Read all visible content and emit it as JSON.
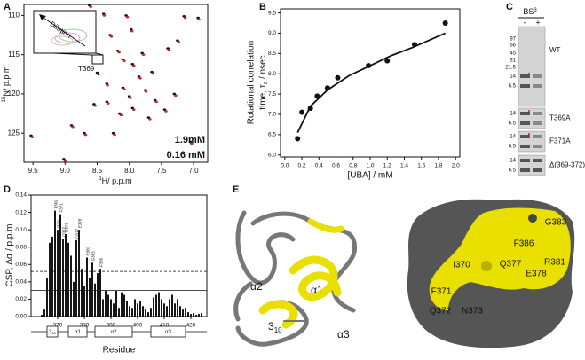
{
  "chart_data": [
    {
      "type": "scatter",
      "panel": "A",
      "xlabel": [
        "1",
        "H/ p.p.m"
      ],
      "ylabel": [
        "15",
        "N/ p.p.m"
      ],
      "xlim": [
        9.64,
        6.78
      ],
      "ylim": [
        128.7,
        108.6
      ],
      "xticks": [
        9.5,
        {
          "value": 9,
          "label": "9.0"
        },
        8.5,
        {
          "value": 8,
          "label": "8.0"
        },
        7.5,
        {
          "value": 7,
          "label": "7.0"
        }
      ],
      "yticks": [
        110,
        115,
        120,
        125
      ],
      "annotations": [
        "Dilution",
        "T369"
      ],
      "series": [
        {
          "name": "1.9mM",
          "color": "#111111",
          "x": [
            9.53,
            9.02,
            8.62,
            8.4,
            8.05,
            7.15,
            6.93,
            7.97,
            8.3,
            8.18,
            8.1,
            7.95,
            8.35,
            8.5,
            7.65,
            7.85,
            8.1,
            7.75,
            8.0,
            8.35,
            7.6,
            7.95,
            8.15,
            7.7,
            7.45,
            7.3,
            7.25,
            8.9,
            8.25,
            7.05,
            8.7,
            7.8,
            7.4,
            8.55
          ],
          "y": [
            125.3,
            128.3,
            108.7,
            109.8,
            110.0,
            110.1,
            110.3,
            111.8,
            112.5,
            114.5,
            115.6,
            116.2,
            118.7,
            117.3,
            117.2,
            117.8,
            119.2,
            119.5,
            120.3,
            121.0,
            120.8,
            121.8,
            122.5,
            123.0,
            122.0,
            120.0,
            113.2,
            124.0,
            125.0,
            126.1,
            125.0,
            114.8,
            114.2,
            121.3
          ]
        },
        {
          "name": "0.16 mM",
          "color": "#d42020",
          "x": [
            9.51,
            9.0,
            8.6,
            8.39,
            8.03,
            7.13,
            6.92,
            7.96,
            8.28,
            8.16,
            8.08,
            7.93,
            8.34,
            8.48,
            7.63,
            7.83,
            8.08,
            7.74,
            7.98,
            8.33,
            7.58,
            7.93,
            8.13,
            7.68,
            7.43,
            7.28,
            7.23,
            8.88,
            8.23,
            7.03,
            8.68,
            7.78,
            7.38,
            8.53
          ],
          "y": [
            125.5,
            128.5,
            108.9,
            110.0,
            110.2,
            110.3,
            110.5,
            112.0,
            112.7,
            114.7,
            115.8,
            116.4,
            118.9,
            117.5,
            117.4,
            118.0,
            119.4,
            119.7,
            120.5,
            121.2,
            121.0,
            122.0,
            122.7,
            123.2,
            122.2,
            120.2,
            113.4,
            124.2,
            125.2,
            126.3,
            125.2,
            115.0,
            114.4,
            121.5
          ]
        }
      ]
    },
    {
      "type": "scatter",
      "panel": "B",
      "xlabel": "[UBA] / mM",
      "ylabel": [
        "Rotational correlation",
        "time, τ",
        "c",
        " / nsec"
      ],
      "xlim": [
        -0.05,
        2.05
      ],
      "ylim": [
        5.95,
        9.6
      ],
      "xticks": [
        {
          "value": 0,
          "label": "0.0"
        },
        0.2,
        0.4,
        0.6,
        0.8,
        {
          "value": 1,
          "label": "1.0"
        },
        1.2,
        1.4,
        1.6,
        1.8,
        {
          "value": 2,
          "label": "2.0"
        }
      ],
      "yticks": [
        {
          "value": 6,
          "label": "6.0"
        },
        6.5,
        {
          "value": 7,
          "label": "7.0"
        },
        7.5,
        {
          "value": 8,
          "label": "8.0"
        },
        8.5,
        {
          "value": 9,
          "label": "9.0"
        },
        9.5
      ],
      "color": "#111111",
      "x": [
        0.15,
        0.2,
        0.3,
        0.38,
        0.5,
        0.62,
        0.98,
        1.2,
        1.52,
        1.88
      ],
      "y": [
        6.4,
        7.05,
        7.15,
        7.45,
        7.65,
        7.9,
        8.2,
        8.32,
        8.72,
        9.25
      ],
      "fit": {
        "x": [
          0.15,
          0.3,
          0.5,
          0.75,
          1.0,
          1.25,
          1.5,
          1.88
        ],
        "y": [
          6.55,
          7.2,
          7.6,
          7.95,
          8.2,
          8.45,
          8.65,
          9.0
        ]
      }
    },
    {
      "type": "bar",
      "panel": "D",
      "xlabel": "Residue",
      "ylabel": "CSP, Δσ / p.p.m",
      "xlim": [
        360,
        426
      ],
      "ylim": [
        0,
        0.14
      ],
      "xticks": [
        370,
        380,
        390,
        400,
        410,
        420
      ],
      "yticks": [
        {
          "value": 0,
          "label": "0.00"
        },
        0.02,
        0.04,
        0.06,
        0.08,
        {
          "value": 0.1,
          "label": "0.10"
        },
        0.12,
        0.14
      ],
      "color": "#111111",
      "x": [
        364,
        365,
        366,
        367,
        368,
        369,
        370,
        371,
        372,
        373,
        374,
        375,
        376,
        377,
        378,
        379,
        380,
        381,
        382,
        383,
        384,
        385,
        386,
        387,
        388,
        389,
        390,
        391,
        392,
        393,
        394,
        395,
        396,
        397,
        398,
        399,
        400,
        401,
        402,
        403,
        404,
        405,
        406,
        407,
        408,
        409,
        410,
        411,
        412,
        413,
        414,
        415,
        416,
        417,
        418,
        419,
        420,
        421,
        422,
        423,
        424
      ],
      "values": [
        0.002,
        0.008,
        0.045,
        0.085,
        0.092,
        0.122,
        0.1,
        0.118,
        0.09,
        0.095,
        0.085,
        0.07,
        0.04,
        0.088,
        0.1,
        0.055,
        0.035,
        0.068,
        0.045,
        0.062,
        0.038,
        0.05,
        0.055,
        0.02,
        0.03,
        0.025,
        0.02,
        0.015,
        0.03,
        0.01,
        0.028,
        0.025,
        0.018,
        0.012,
        0.01,
        0.02,
        0.015,
        0.018,
        0.012,
        0.008,
        0.005,
        0.01,
        0.022,
        0.025,
        0.028,
        0.02,
        0.015,
        0.012,
        0.02,
        0.025,
        0.015,
        0.02,
        0.012,
        0.008,
        0.01,
        0.005,
        0.003,
        0.004,
        0.002,
        0.003,
        0.004
      ],
      "thresholds": [
        {
          "value": 0.03,
          "style": "solid"
        },
        {
          "value": 0.052,
          "style": "dashed"
        }
      ],
      "annotations": [
        {
          "text": "T369",
          "x": 369,
          "y": 0.122
        },
        {
          "text": "I370",
          "x": 370,
          "y": 0.1
        },
        {
          "text": "F371",
          "x": 371,
          "y": 0.118
        },
        {
          "text": "Q372",
          "x": 372,
          "y": 0.09
        },
        {
          "text": "N373",
          "x": 373,
          "y": 0.095
        },
        {
          "text": "Q377",
          "x": 377,
          "y": 0.088
        },
        {
          "text": "E378",
          "x": 378,
          "y": 0.1
        },
        {
          "text": "R381",
          "x": 381,
          "y": 0.068
        },
        {
          "text": "G383",
          "x": 383,
          "y": 0.062
        },
        {
          "text": "F386",
          "x": 386,
          "y": 0.055
        }
      ],
      "secondary_structure": [
        {
          "label": "3",
          "sub": "10",
          "start": 366,
          "end": 370
        },
        {
          "label": "α1",
          "start": 374,
          "end": 381
        },
        {
          "label": "α2",
          "start": 384,
          "end": 398
        },
        {
          "label": "α3",
          "start": 405,
          "end": 418
        }
      ]
    }
  ],
  "gel": {
    "panel": "C",
    "label": [
      "BS",
      "3"
    ],
    "lanes": [
      "-",
      "+"
    ],
    "blocks": [
      {
        "name": "WT",
        "markers": [
          97,
          66,
          45,
          31,
          21.5,
          14,
          6.5
        ]
      },
      {
        "name": "T369A",
        "markers": [
          14,
          6.5
        ]
      },
      {
        "name": "F371A",
        "markers": [
          14,
          6.5
        ]
      },
      {
        "name": "Δ(369-372)",
        "markers": [
          14,
          6.5
        ]
      }
    ]
  },
  "structure": {
    "panel": "E",
    "ribbon_labels": [
      {
        "text": "α2"
      },
      {
        "text": "α1"
      },
      {
        "text": "3",
        "sub": "10"
      },
      {
        "text": "α3"
      }
    ],
    "surface_labels": [
      "G383",
      "F386",
      "I370",
      "Q377",
      "R381",
      "E378",
      "F371",
      "Q372",
      "N373"
    ]
  }
}
